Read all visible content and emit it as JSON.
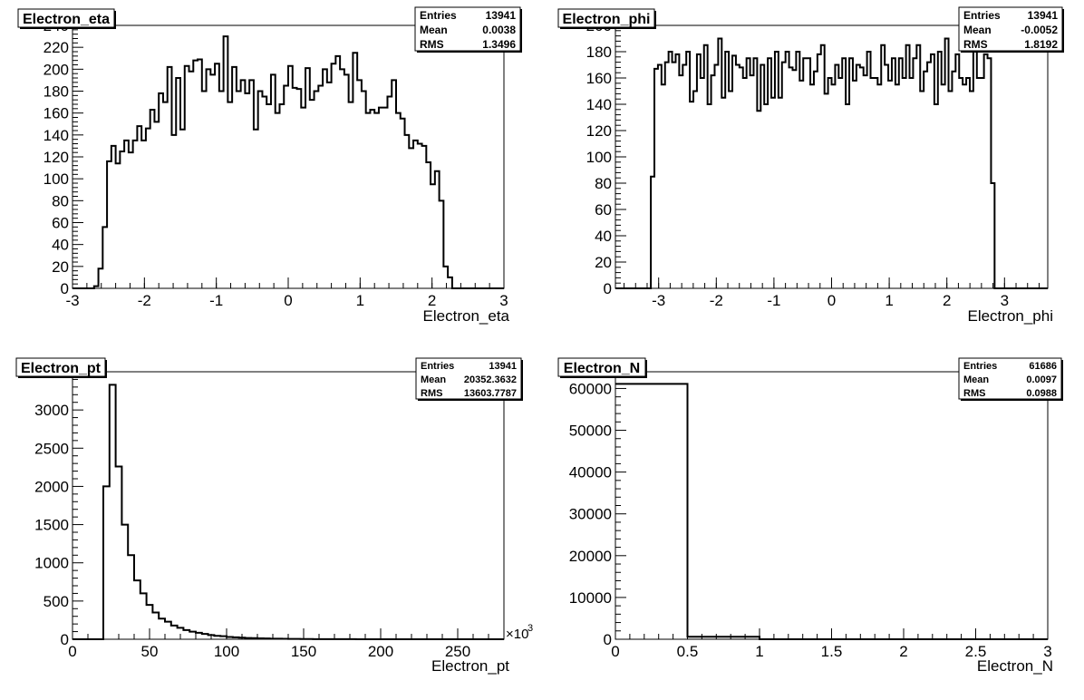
{
  "chart_data": [
    {
      "type": "histogram",
      "title": "Electron_eta",
      "xlabel": "Electron_eta",
      "ylabel": "",
      "xlim": [
        -3,
        3
      ],
      "ylim": [
        0,
        240
      ],
      "xticks": [
        -3,
        -2,
        -1,
        0,
        1,
        2,
        3
      ],
      "yticks": [
        0,
        20,
        40,
        60,
        80,
        100,
        120,
        140,
        160,
        180,
        200,
        220,
        240
      ],
      "bin_range": [
        -3,
        3
      ],
      "values": [
        0,
        0,
        0,
        0,
        0,
        2,
        18,
        56,
        116,
        130,
        114,
        125,
        135,
        124,
        135,
        148,
        135,
        146,
        163,
        152,
        178,
        170,
        202,
        140,
        192,
        145,
        203,
        198,
        208,
        209,
        180,
        200,
        195,
        205,
        180,
        230,
        170,
        202,
        180,
        190,
        178,
        190,
        145,
        180,
        175,
        168,
        195,
        160,
        168,
        185,
        203,
        183,
        182,
        165,
        201,
        172,
        180,
        185,
        200,
        188,
        205,
        212,
        200,
        195,
        170,
        215,
        190,
        180,
        160,
        163,
        160,
        165,
        165,
        175,
        190,
        160,
        155,
        140,
        128,
        135,
        132,
        130,
        115,
        95,
        107,
        80,
        20,
        10,
        0,
        0,
        0,
        0,
        0,
        0,
        0,
        0,
        0,
        0,
        0,
        0
      ],
      "stats": {
        "Entries": "13941",
        "Mean": "0.0038",
        "RMS": "1.3496"
      }
    },
    {
      "type": "histogram",
      "title": "Electron_phi",
      "xlabel": "Electron_phi",
      "ylabel": "",
      "xlim": [
        -3.75,
        3.75
      ],
      "ylim": [
        0,
        200
      ],
      "xticks": [
        -3,
        -2,
        -1,
        0,
        1,
        2,
        3
      ],
      "yticks": [
        0,
        20,
        40,
        60,
        80,
        100,
        120,
        140,
        160,
        180,
        200
      ],
      "bin_range": [
        -3.75,
        3.75
      ],
      "values": [
        0,
        0,
        0,
        0,
        0,
        0,
        0,
        0,
        0,
        0,
        85,
        167,
        170,
        155,
        172,
        180,
        172,
        178,
        162,
        170,
        180,
        142,
        150,
        178,
        160,
        185,
        140,
        162,
        170,
        190,
        145,
        180,
        150,
        177,
        170,
        168,
        160,
        175,
        162,
        175,
        135,
        170,
        140,
        175,
        145,
        180,
        145,
        172,
        180,
        168,
        166,
        180,
        158,
        175,
        175,
        155,
        165,
        178,
        185,
        148,
        160,
        155,
        170,
        160,
        175,
        140,
        175,
        158,
        170,
        168,
        162,
        180,
        160,
        160,
        155,
        185,
        170,
        158,
        175,
        155,
        175,
        160,
        185,
        160,
        175,
        185,
        150,
        165,
        172,
        178,
        140,
        180,
        155,
        190,
        150,
        165,
        178,
        160,
        155,
        160,
        150,
        190,
        160,
        160,
        178,
        175,
        80,
        0,
        0,
        0,
        0,
        0,
        0,
        0,
        0,
        0,
        0,
        0,
        0,
        0,
        0,
        0
      ],
      "stats": {
        "Entries": "13941",
        "Mean": "-0.0052",
        "RMS": "1.8192"
      }
    },
    {
      "type": "histogram",
      "title": "Electron_pt",
      "xlabel": "Electron_pt",
      "ylabel": "",
      "x_multiplier": "×10",
      "x_multiplier_exp": "3",
      "xlim": [
        0,
        280
      ],
      "ylim": [
        0,
        3500
      ],
      "xticks": [
        0,
        50,
        100,
        150,
        200,
        250
      ],
      "yticks": [
        0,
        500,
        1000,
        1500,
        2000,
        2500,
        3000,
        3500
      ],
      "bin_range": [
        0,
        280
      ],
      "values": [
        0,
        0,
        0,
        0,
        0,
        2000,
        3330,
        2260,
        1500,
        1100,
        770,
        600,
        450,
        350,
        270,
        230,
        180,
        150,
        120,
        100,
        85,
        70,
        55,
        45,
        40,
        30,
        25,
        20,
        17,
        15,
        12,
        10,
        8,
        7,
        6,
        5,
        4,
        3,
        3,
        2,
        2,
        1,
        1,
        1,
        1,
        1,
        0,
        0,
        0,
        0,
        0,
        0,
        0,
        0,
        0,
        0,
        0,
        0,
        0,
        0,
        0,
        0,
        0,
        0,
        0,
        0,
        0,
        0,
        0,
        0
      ],
      "stats": {
        "Entries": "13941",
        "Mean": "20352.3632",
        "RMS": "13603.7787"
      }
    },
    {
      "type": "histogram",
      "title": "Electron_N",
      "xlabel": "Electron_N",
      "ylabel": "",
      "xlim": [
        0,
        3
      ],
      "ylim": [
        0,
        64000
      ],
      "xticks": [
        0,
        0.5,
        1,
        1.5,
        2,
        2.5,
        3
      ],
      "yticks": [
        0,
        10000,
        20000,
        30000,
        40000,
        50000,
        60000
      ],
      "bin_range": [
        0,
        3
      ],
      "values": [
        61100,
        590,
        8,
        0,
        0,
        0
      ],
      "stats": {
        "Entries": "61686",
        "Mean": "0.0097",
        "RMS": "0.0988"
      }
    }
  ]
}
